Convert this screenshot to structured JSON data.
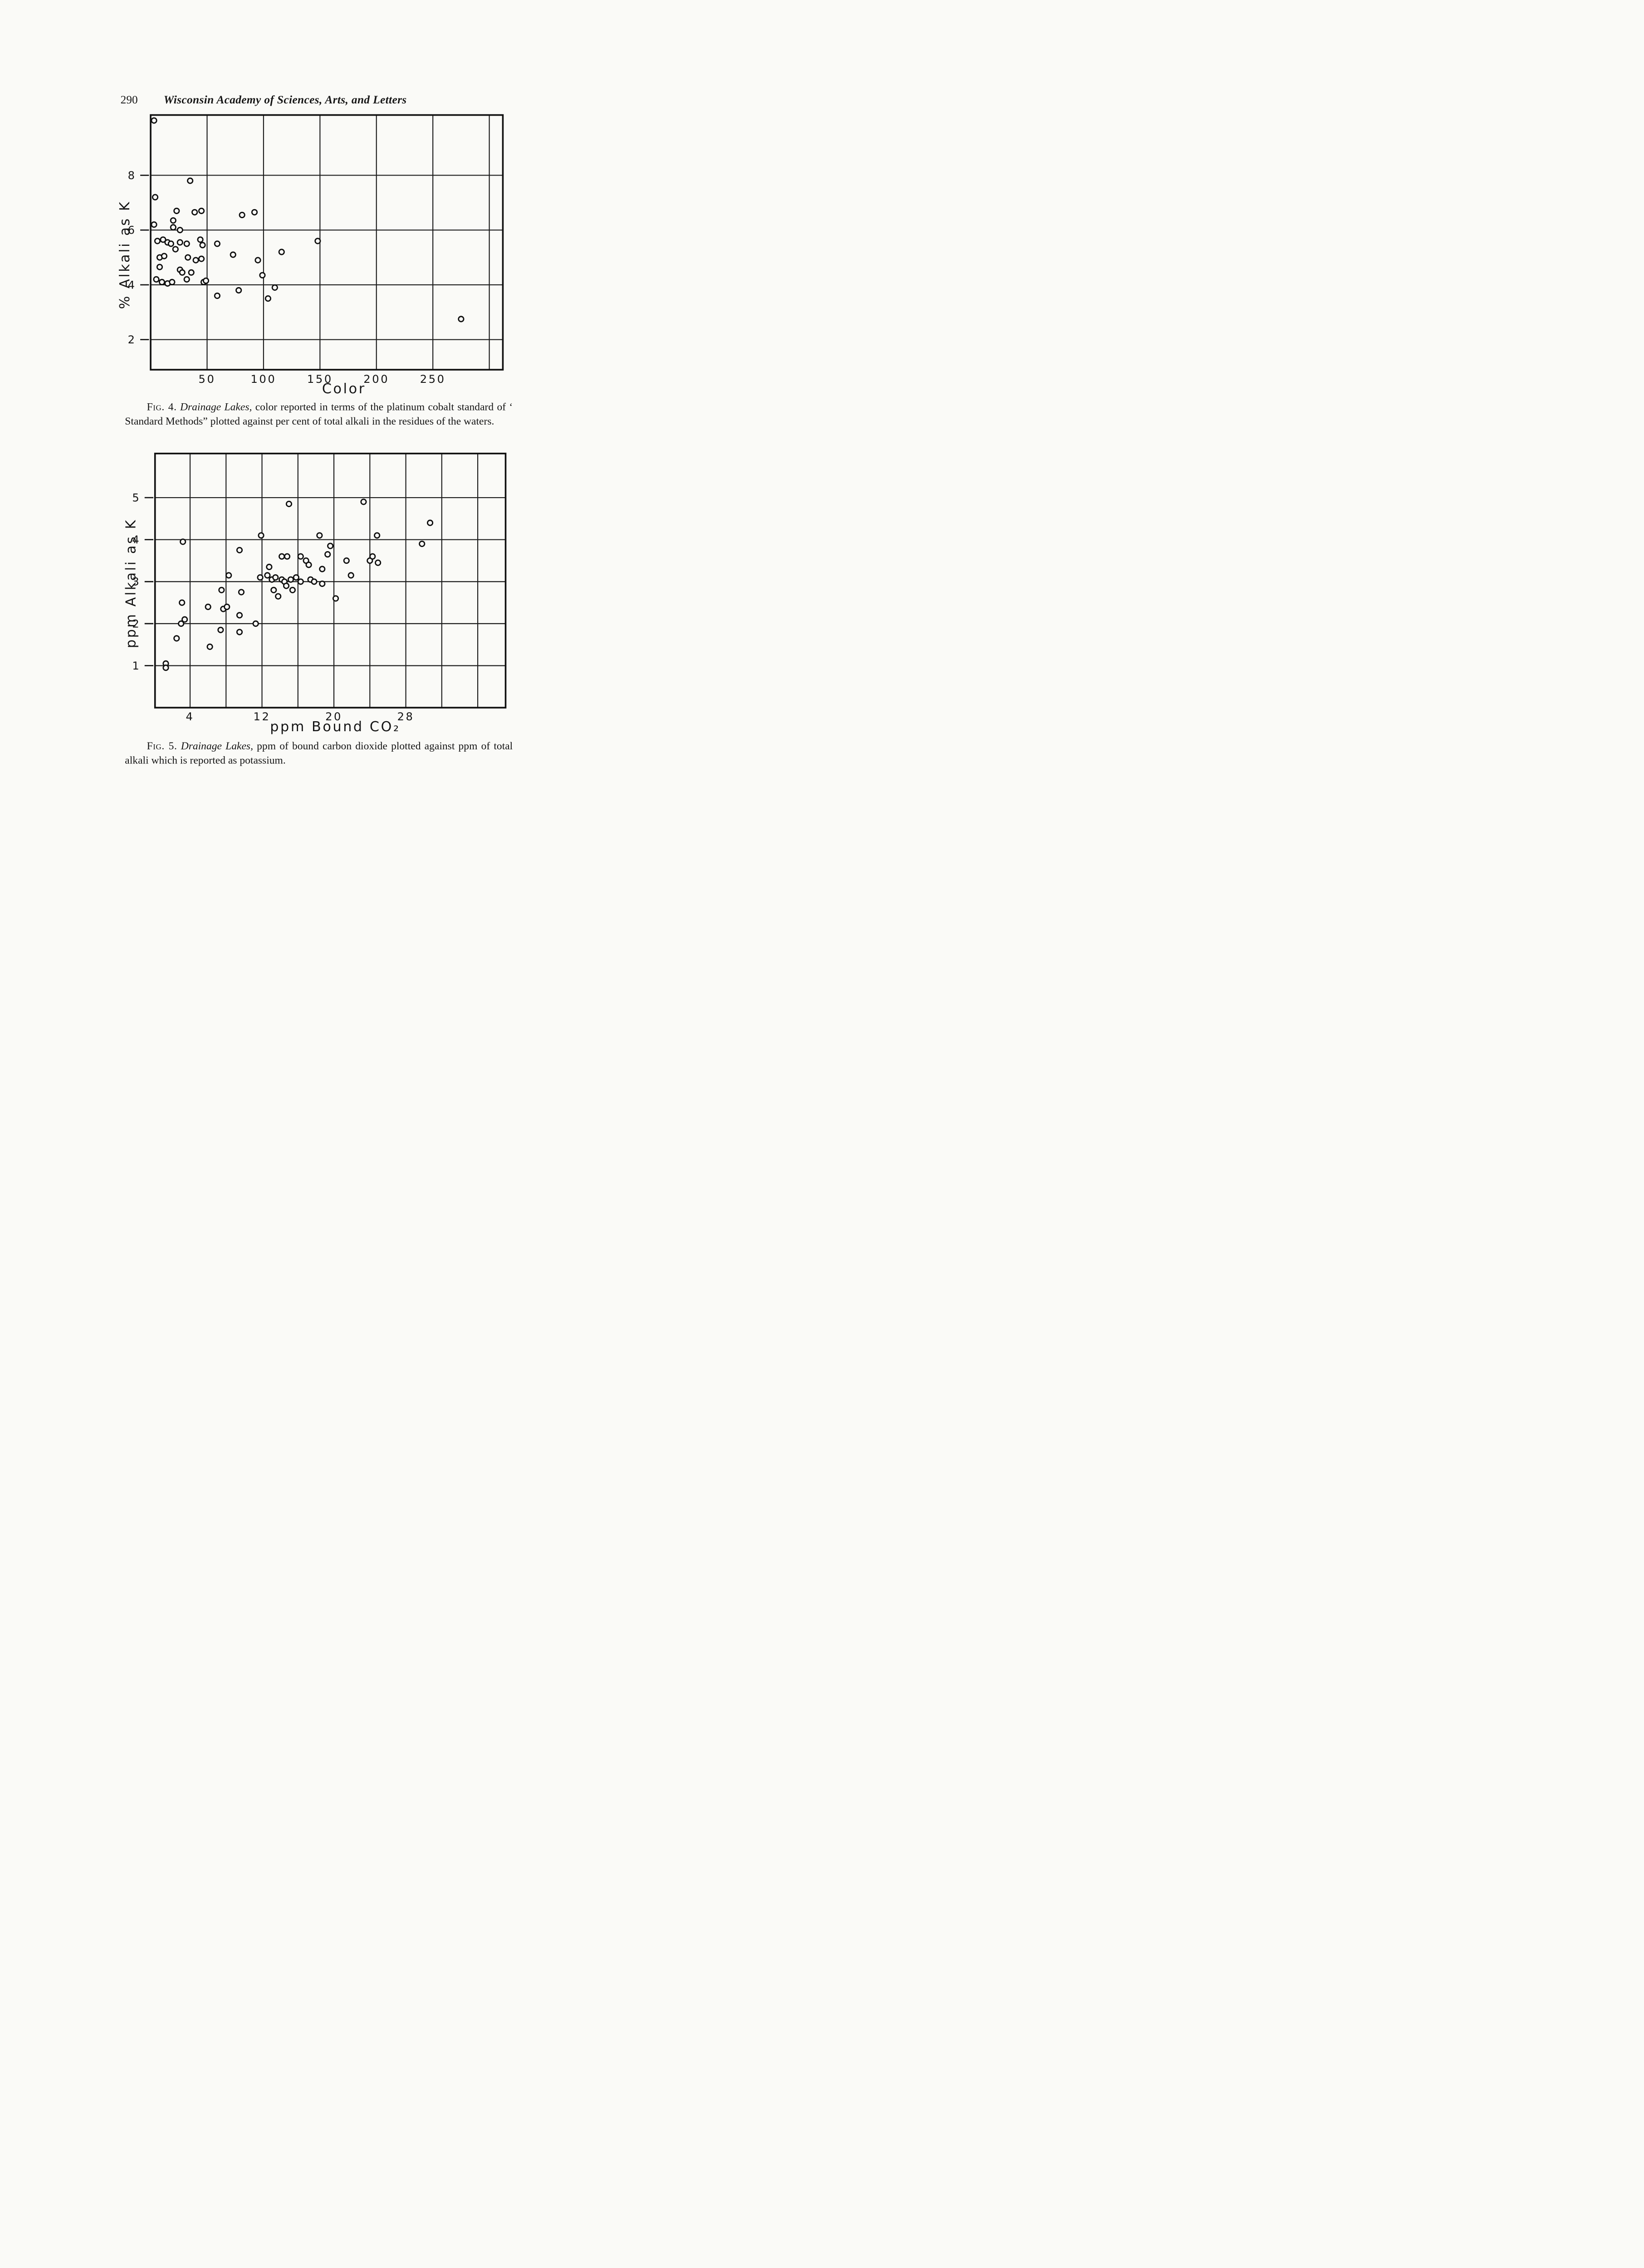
{
  "page": {
    "number": "290",
    "journal_title": "Wisconsin Academy of Sciences, Arts, and Letters"
  },
  "figures": [
    {
      "caption_label": "Fig. 4.",
      "caption_title": "Drainage Lakes,",
      "caption_text": "color reported in terms of the platinum cobalt standard of ‘ Standard Methods” plotted against per cent of total alkali in the residues of the waters."
    },
    {
      "caption_label": "Fig. 5.",
      "caption_title": "Drainage Lakes,",
      "caption_text": "ppm of bound carbon dioxide plotted against ppm of total alkali which is reported as potassium."
    }
  ],
  "chart_data": [
    {
      "type": "scatter",
      "title": "",
      "xlabel": "Color",
      "ylabel": "% Alkali as K",
      "marker": "open-circle",
      "xlim": [
        0,
        312
      ],
      "ylim": [
        0.9,
        10.2
      ],
      "x_gridlines": [
        50,
        100,
        150,
        200,
        250,
        300
      ],
      "y_gridlines": [
        2,
        4,
        6,
        8
      ],
      "x_ticks": {
        "values": [
          50,
          100,
          150,
          200,
          250
        ],
        "labels": [
          "50",
          "100",
          "150",
          "200",
          "250"
        ]
      },
      "y_ticks": {
        "values": [
          8,
          6,
          4,
          2
        ],
        "labels": [
          "8",
          "6",
          "4",
          "2"
        ]
      },
      "points": [
        [
          3,
          10.0
        ],
        [
          35,
          7.8
        ],
        [
          4,
          7.2
        ],
        [
          23,
          6.7
        ],
        [
          39,
          6.65
        ],
        [
          45,
          6.7
        ],
        [
          81,
          6.55
        ],
        [
          92,
          6.65
        ],
        [
          3,
          6.2
        ],
        [
          20,
          6.35
        ],
        [
          20,
          6.1
        ],
        [
          26,
          6.0
        ],
        [
          6,
          5.6
        ],
        [
          11,
          5.65
        ],
        [
          15,
          5.55
        ],
        [
          18,
          5.5
        ],
        [
          26,
          5.55
        ],
        [
          32,
          5.5
        ],
        [
          44,
          5.65
        ],
        [
          46,
          5.45
        ],
        [
          59,
          5.5
        ],
        [
          22,
          5.3
        ],
        [
          73,
          5.1
        ],
        [
          116,
          5.2
        ],
        [
          148,
          5.6
        ],
        [
          8,
          5.0
        ],
        [
          12,
          5.05
        ],
        [
          33,
          5.0
        ],
        [
          40,
          4.9
        ],
        [
          45,
          4.95
        ],
        [
          95,
          4.9
        ],
        [
          8,
          4.65
        ],
        [
          26,
          4.55
        ],
        [
          28,
          4.45
        ],
        [
          36,
          4.45
        ],
        [
          99,
          4.35
        ],
        [
          5,
          4.2
        ],
        [
          10,
          4.1
        ],
        [
          15,
          4.05
        ],
        [
          19,
          4.1
        ],
        [
          32,
          4.2
        ],
        [
          47,
          4.1
        ],
        [
          49,
          4.15
        ],
        [
          110,
          3.9
        ],
        [
          59,
          3.6
        ],
        [
          78,
          3.8
        ],
        [
          104,
          3.5
        ],
        [
          275,
          2.75
        ]
      ]
    },
    {
      "type": "scatter",
      "title": "",
      "xlabel": "ppm Bound CO₂",
      "ylabel": "ppm Alkali as K",
      "marker": "open-circle",
      "xlim": [
        0.1,
        39.1
      ],
      "ylim": [
        0,
        6.05
      ],
      "x_gridlines": [
        4,
        8,
        12,
        16,
        20,
        24,
        28,
        32,
        36
      ],
      "y_gridlines": [
        1,
        2,
        3,
        4,
        5
      ],
      "x_ticks": {
        "values": [
          4,
          12,
          20,
          28
        ],
        "labels": [
          "4",
          "12",
          "20",
          "28"
        ]
      },
      "y_ticks": {
        "values": [
          5,
          4,
          3,
          2,
          1
        ],
        "labels": [
          "5",
          "4",
          "3",
          "2",
          "1"
        ]
      },
      "points": [
        [
          1.3,
          1.05
        ],
        [
          1.3,
          0.95
        ],
        [
          2.5,
          1.65
        ],
        [
          3.0,
          2.0
        ],
        [
          3.4,
          2.1
        ],
        [
          3.1,
          2.5
        ],
        [
          3.2,
          3.95
        ],
        [
          6.0,
          2.4
        ],
        [
          6.2,
          1.45
        ],
        [
          7.4,
          1.85
        ],
        [
          7.7,
          2.35
        ],
        [
          8.1,
          2.4
        ],
        [
          7.5,
          2.8
        ],
        [
          8.3,
          3.15
        ],
        [
          9.5,
          3.75
        ],
        [
          9.7,
          2.75
        ],
        [
          9.5,
          2.2
        ],
        [
          9.5,
          1.8
        ],
        [
          11.3,
          2.0
        ],
        [
          11.9,
          4.1
        ],
        [
          11.8,
          3.1
        ],
        [
          12.6,
          3.15
        ],
        [
          12.8,
          3.35
        ],
        [
          13.1,
          3.05
        ],
        [
          13.5,
          3.1
        ],
        [
          13.3,
          2.8
        ],
        [
          13.8,
          2.65
        ],
        [
          14.2,
          3.6
        ],
        [
          14.8,
          3.6
        ],
        [
          14.2,
          3.05
        ],
        [
          14.5,
          3.0
        ],
        [
          14.7,
          2.9
        ],
        [
          15.0,
          4.85
        ],
        [
          15.2,
          3.05
        ],
        [
          15.4,
          2.8
        ],
        [
          15.8,
          3.1
        ],
        [
          16.3,
          3.6
        ],
        [
          16.3,
          3.0
        ],
        [
          16.9,
          3.5
        ],
        [
          17.2,
          3.4
        ],
        [
          17.4,
          3.05
        ],
        [
          17.8,
          3.0
        ],
        [
          18.4,
          4.1
        ],
        [
          18.7,
          3.3
        ],
        [
          18.7,
          2.95
        ],
        [
          19.3,
          3.65
        ],
        [
          19.6,
          3.85
        ],
        [
          20.2,
          2.6
        ],
        [
          21.4,
          3.5
        ],
        [
          21.9,
          3.15
        ],
        [
          23.3,
          4.9
        ],
        [
          24.8,
          4.1
        ],
        [
          24.0,
          3.5
        ],
        [
          24.3,
          3.6
        ],
        [
          24.9,
          3.45
        ],
        [
          29.8,
          3.9
        ],
        [
          30.7,
          4.4
        ]
      ]
    }
  ]
}
